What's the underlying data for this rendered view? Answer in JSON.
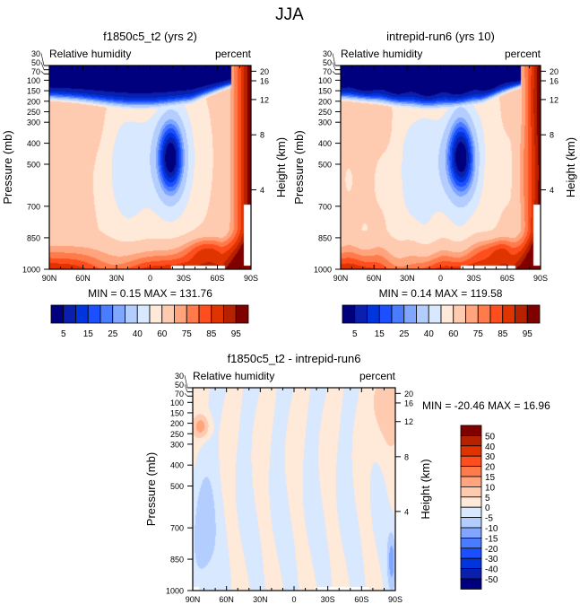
{
  "title": "JJA",
  "chart_data": [
    {
      "type": "heatmap",
      "title": "f1850c5_t2 (yrs 2)",
      "left_label": "Relative humidity",
      "right_label": "percent",
      "xlabel": "",
      "ylabel": "Pressure (mb)",
      "y2label": "Height (km)",
      "x_ticks": [
        "90N",
        "60N",
        "30N",
        "0",
        "30S",
        "60S",
        "90S"
      ],
      "y_ticks": [
        30,
        50,
        70,
        100,
        150,
        200,
        250,
        300,
        400,
        500,
        700,
        850,
        1000
      ],
      "y2_ticks": [
        20,
        16,
        12,
        8,
        4
      ],
      "stats": "MIN =   0.15  MAX = 131.76",
      "levels": [
        5,
        10,
        15,
        20,
        25,
        30,
        40,
        50,
        60,
        70,
        75,
        80,
        85,
        90,
        95
      ],
      "level_labels": [
        "5",
        "15",
        "25",
        "40",
        "60",
        "75",
        "85",
        "95"
      ]
    },
    {
      "type": "heatmap",
      "title": "intrepid-run6 (yrs 10)",
      "left_label": "Relative humidity",
      "right_label": "percent",
      "xlabel": "",
      "ylabel": "Pressure (mb)",
      "y2label": "Height (km)",
      "x_ticks": [
        "90N",
        "60N",
        "30N",
        "0",
        "30S",
        "60S",
        "90S"
      ],
      "y_ticks": [
        30,
        50,
        70,
        100,
        150,
        200,
        250,
        300,
        400,
        500,
        700,
        850,
        1000
      ],
      "y2_ticks": [
        20,
        16,
        12,
        8,
        4
      ],
      "stats": "MIN =   0.14  MAX = 119.58",
      "levels": [
        5,
        10,
        15,
        20,
        25,
        30,
        40,
        50,
        60,
        70,
        75,
        80,
        85,
        90,
        95
      ],
      "level_labels": [
        "5",
        "15",
        "25",
        "40",
        "60",
        "75",
        "85",
        "95"
      ]
    },
    {
      "type": "heatmap",
      "title": "f1850c5_t2 - intrepid-run6",
      "left_label": "Relative humidity",
      "right_label": "percent",
      "xlabel": "",
      "ylabel": "Pressure (mb)",
      "y2label": "Height (km)",
      "x_ticks": [
        "90N",
        "60N",
        "30N",
        "0",
        "30S",
        "60S",
        "90S"
      ],
      "y_ticks": [
        30,
        50,
        70,
        100,
        150,
        200,
        250,
        300,
        400,
        500,
        700,
        850,
        1000
      ],
      "y2_ticks": [
        20,
        16,
        12,
        8,
        4
      ],
      "stats": "MIN = -20.46  MAX =  16.96",
      "levels": [
        -50,
        -40,
        -30,
        -20,
        -15,
        -10,
        -5,
        0,
        5,
        10,
        15,
        20,
        30,
        40,
        50
      ],
      "level_labels": [
        "-50",
        "-40",
        "-30",
        "-20",
        "-15",
        "-10",
        "-5",
        "0",
        "5",
        "10",
        "15",
        "20",
        "30",
        "40",
        "50"
      ]
    }
  ],
  "palette": [
    "#00007f",
    "#0a1fae",
    "#0035dd",
    "#1c4fff",
    "#4a7cff",
    "#80a6ff",
    "#b3cdff",
    "#d7e8ff",
    "#ffe9d8",
    "#ffcbb0",
    "#ffa47d",
    "#ff7b4b",
    "#ff4e1e",
    "#df3300",
    "#b62100",
    "#800000"
  ]
}
